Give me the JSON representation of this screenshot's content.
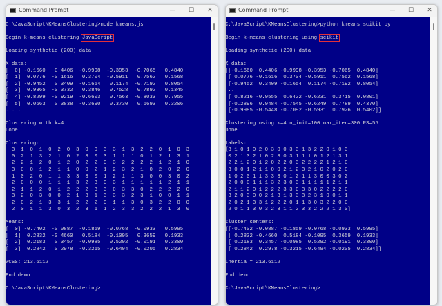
{
  "left": {
    "title": "Command Prompt",
    "controls": {
      "minimize": "—",
      "maximize": "☐",
      "close": "✕"
    },
    "lines": [
      "C:\\JavaScript\\KMeansClustering>node kmeans.js",
      "",
      {
        "prefix": "Begin k-means clustering ",
        "highlight": "JavaScript"
      },
      "",
      "Loading synthetic (200) data",
      "",
      "X data:",
      "[  0] -0.1660   0.4406  -0.9998  -0.3953  -0.7065   0.4840",
      "[  1]  0.0776  -0.1616   0.3704  -0.5911   0.7562   0.1568",
      "[  2] -0.9452   0.3409  -0.1654   0.1174  -0.7192   0.8054",
      "[  3]  0.9365  -0.3732   0.3846   0.7528   0.7892   0.1345",
      "[  4] -0.8299  -0.9219  -0.6603   0.7563  -0.8033   0.7955",
      "[  5]  0.0663   0.3838  -0.3690   0.3730   0.6693   0.3206",
      ". . .",
      "",
      "Clustering with k=4",
      "Done",
      "",
      "Clustering:",
      "  3  1  0  1  0  2  0  3  0  0  3  3  1  3  2  2  0  1  0  3",
      "  0  2  1  3  2  1  0  2  3  0  3  1  1  1  0  1  2  1  3  1",
      "  2  2  1  2  0  1  2  0  2  2  0  3  2  2  2  2  1  2  1  0",
      "  3  0  0  1  2  1  1  0  0  2  1  2  3  2  1  0  2  0  2  0",
      "  1  0  2  0  1  1  3  3  3  0  1  2  1  1  3  0  0  3  0  2",
      "  2  0  0  0  1  1  1  3  2  3  0  3  1  1  1  1  1  2  1  1",
      "  2  1  1  2  0  1  2  2  2  3  3  0  3  3  0  2  2  2  2  0",
      "  3  2  0  3  0  0  2  1  3  1  3  3  3  2  3  1  0  0  1  1",
      "  2  0  2  1  3  3  1  2  2  2  0  1  1  3  0  3  2  2  0  0",
      "  2  0  1  1  3  0  3  2  3  1  1  2  3  3  2  2  2  1  3  0",
      "",
      "Means:",
      "[  0] -0.7402  -0.0887  -0.1859  -0.0768  -0.0933   0.5995",
      "[  1]  0.2832  -0.4660   0.5184  -0.1095   0.3659   0.1933",
      "[  2]  0.2183   0.3457  -0.0985   0.5292  -0.0191   0.3300",
      "[  3]  0.2842   0.2978  -0.3215  -0.6494  -0.0205   0.2834",
      "",
      "WCSS: 213.6112",
      "",
      "End demo",
      "",
      "C:\\JavaScript\\KMeansClustering>"
    ]
  },
  "right": {
    "title": "Command Prompt",
    "controls": {
      "minimize": "—",
      "maximize": "☐",
      "close": "✕"
    },
    "lines": [
      "C:\\JavaScript\\KMeansClustering>python kmeans_scikit.py",
      "",
      {
        "prefix": "Begin k-means clustering using ",
        "highlight": "scikit"
      },
      "",
      "Loading synthetic (200) data",
      "",
      "X data:",
      "[[-0.1660  0.4406 -0.9998 -0.3953 -0.7065  0.4840]",
      " [ 0.0776 -0.1616  0.3704 -0.5911  0.7562  0.1568]",
      " [-0.9452  0.3409 -0.1654  0.1174 -0.7192  0.8054]",
      " ...",
      " [ 0.8216 -0.9555  0.6422 -0.6231  0.3715  0.0801]",
      " [-0.2896  0.9484 -0.7545 -0.6249  0.7789  0.4370]",
      " [-0.9985 -0.5448 -0.7092 -0.5931  0.7926  0.5402]]",
      "",
      "Clustering using k=4 n_init=100 max_iter=300 RS=55",
      "Done",
      "",
      "Labels:",
      "[3 1 0 1 0 2 0 3 0 0 3 3 1 3 2 2 0 1 0 3",
      " 0 2 1 3 2 1 0 2 3 0 3 1 1 1 0 1 2 1 3 1",
      " 2 2 1 2 0 1 2 0 2 2 0 3 2 2 2 2 1 2 1 0",
      " 3 0 0 1 2 1 1 0 0 2 1 2 3 2 1 0 2 0 2 0",
      " 1 0 2 0 1 1 3 3 3 0 1 2 1 1 3 0 0 3 0 2",
      " 2 0 0 0 1 1 1 3 2 3 0 3 1 1 1 1 1 2 1 1",
      " 2 1 1 2 0 1 2 2 2 3 3 0 3 3 0 2 2 2 2 0",
      " 3 2 0 3 0 0 2 1 3 1 3 3 3 2 3 1 0 0 1 1",
      " 2 0 2 1 3 3 1 2 2 2 0 1 1 3 0 3 2 2 0 0",
      " 2 0 1 1 3 0 3 2 3 1 1 2 3 3 2 2 2 1 3 0]",
      "",
      "Cluster centers:",
      "[[-0.7402 -0.0887 -0.1859 -0.0768 -0.0933  0.5995]",
      " [ 0.2832 -0.4660  0.5184 -0.1095  0.3659  0.1933]",
      " [ 0.2183  0.3457 -0.0985  0.5292 -0.0191  0.3300]",
      " [ 0.2842  0.2978 -0.3215 -0.6494 -0.0205  0.2834]]",
      "",
      "Inertia = 213.6112",
      "",
      "End demo",
      "",
      "C:\\JavaScript\\KMeansClustering>"
    ]
  }
}
